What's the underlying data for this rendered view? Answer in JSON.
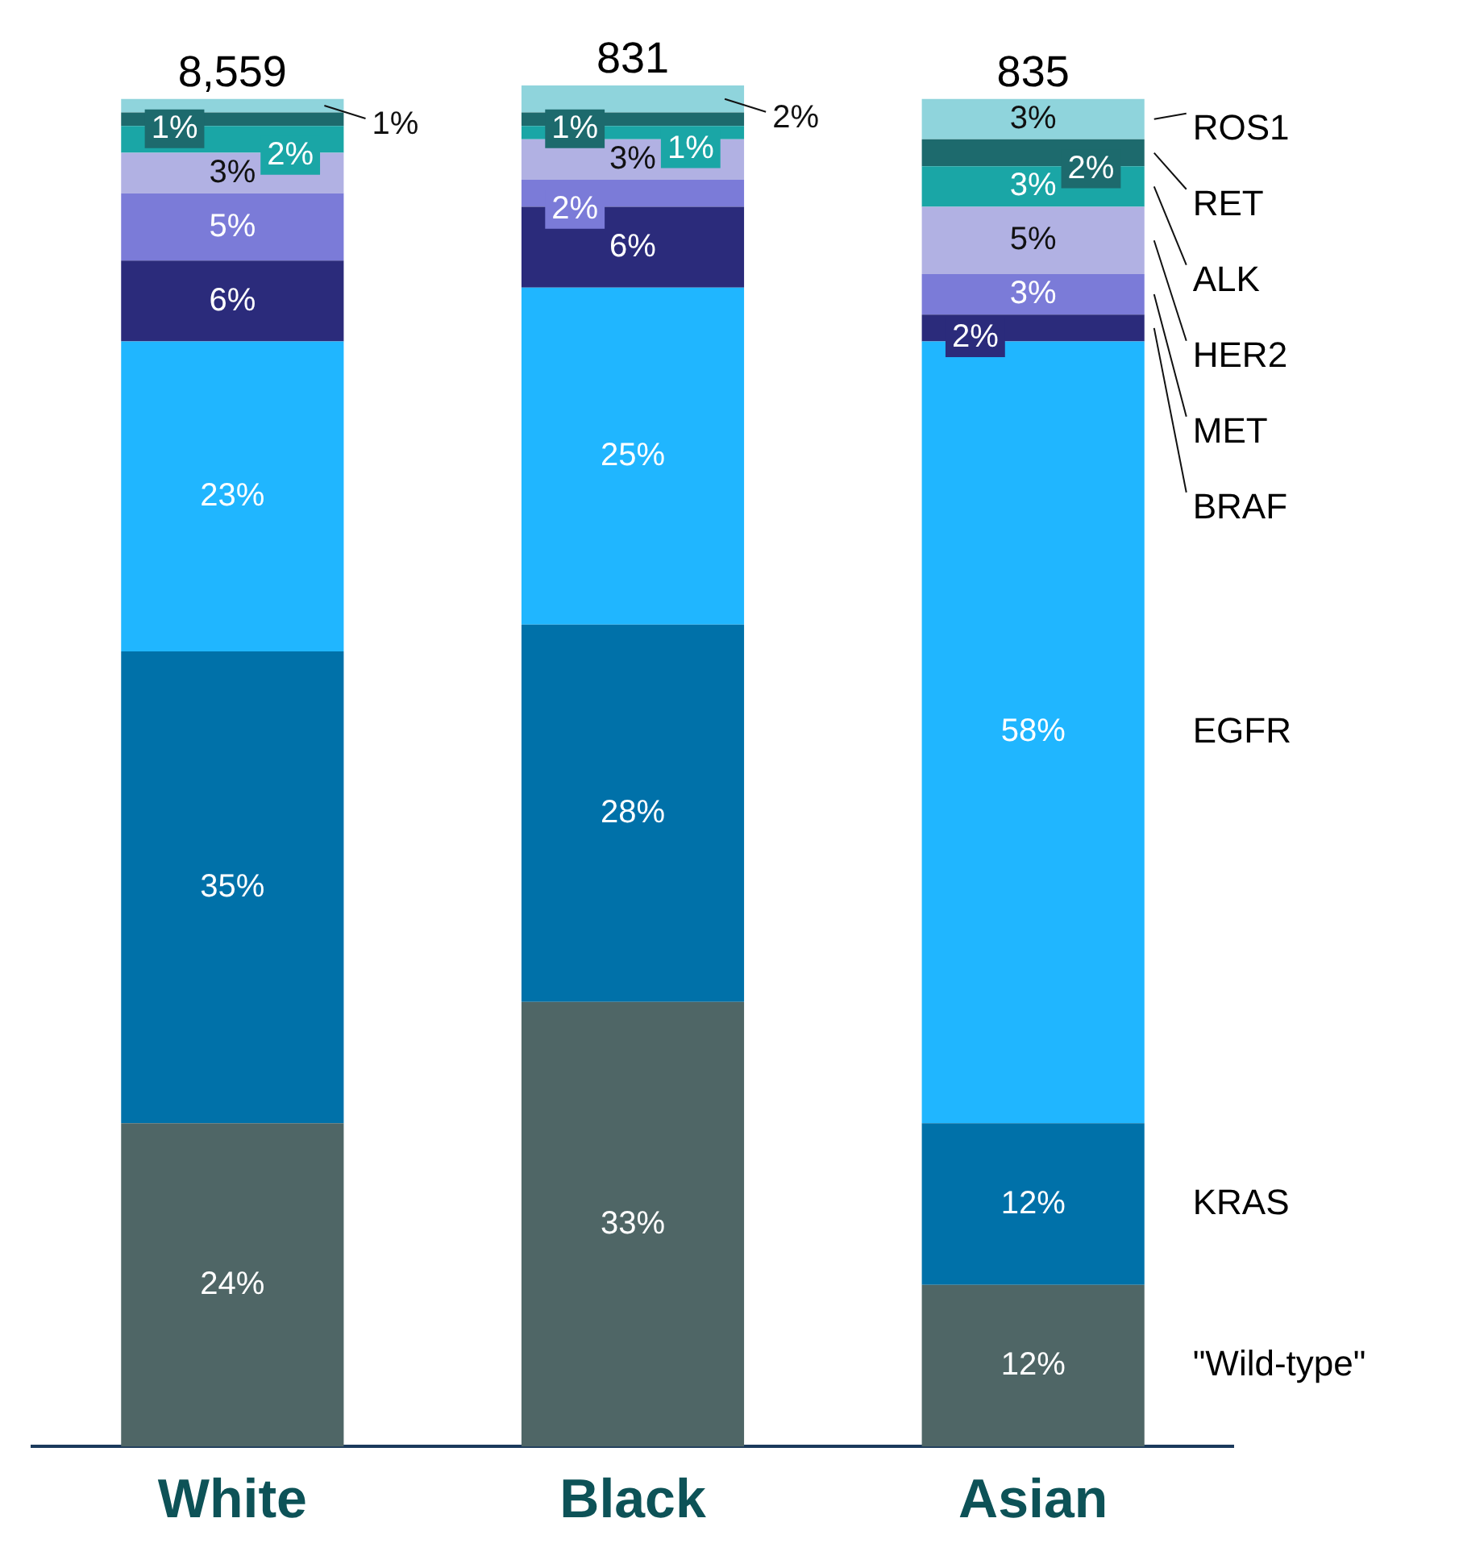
{
  "chart_data": {
    "type": "bar",
    "stacked": true,
    "categories": [
      "White",
      "Black",
      "Asian"
    ],
    "annotations": [
      "8,559",
      "831",
      "835"
    ],
    "series": [
      {
        "name": "\"Wild-type\"",
        "color": "#4f6666",
        "values": [
          24,
          33,
          12
        ],
        "value_labels": [
          "24%",
          "33%",
          "12%"
        ]
      },
      {
        "name": "KRAS",
        "color": "#0071a9",
        "values": [
          35,
          28,
          12
        ],
        "value_labels": [
          "35%",
          "28%",
          "12%"
        ]
      },
      {
        "name": "EGFR",
        "color": "#20b6ff",
        "values": [
          23,
          25,
          58
        ],
        "value_labels": [
          "23%",
          "25%",
          "58%"
        ]
      },
      {
        "name": "BRAF",
        "color": "#2b2b7b",
        "values": [
          6,
          6,
          2
        ],
        "value_labels": [
          "6%",
          "6%",
          "2%"
        ]
      },
      {
        "name": "MET",
        "color": "#7b7bd8",
        "values": [
          5,
          2,
          3
        ],
        "value_labels": [
          "5%",
          "2%",
          "3%"
        ]
      },
      {
        "name": "HER2",
        "color": "#b1b1e3",
        "values": [
          3,
          3,
          5
        ],
        "value_labels": [
          "3%",
          "3%",
          "5%"
        ]
      },
      {
        "name": "ALK",
        "color": "#1aa6a6",
        "values": [
          2,
          1,
          3
        ],
        "value_labels": [
          "2%",
          "1%",
          "3%"
        ]
      },
      {
        "name": "RET",
        "color": "#1d6a6d",
        "values": [
          1,
          1,
          2
        ],
        "value_labels": [
          "1%",
          "1%",
          "2%"
        ]
      },
      {
        "name": "ROS1",
        "color": "#8fd4dc",
        "values": [
          1,
          2,
          3
        ],
        "value_labels": [
          "1%",
          "2%",
          "3%"
        ]
      }
    ]
  }
}
